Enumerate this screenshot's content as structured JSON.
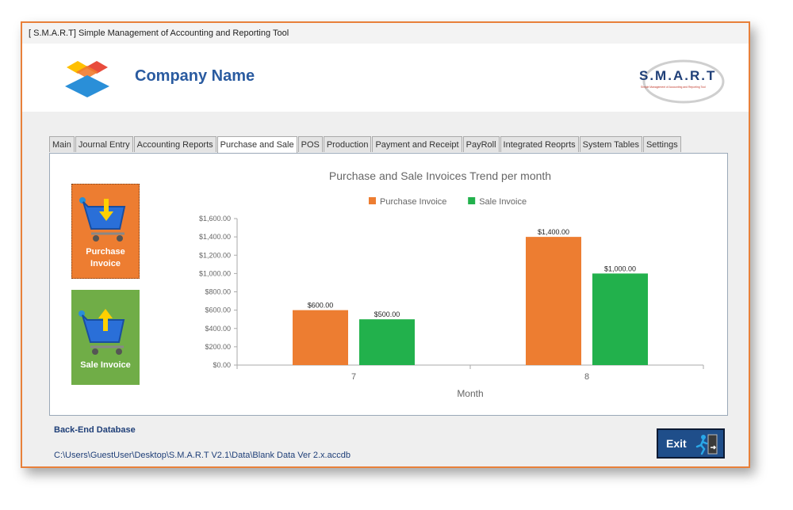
{
  "window": {
    "title": "[ S.M.A.R.T] Simple Management of Accounting and Reporting Tool"
  },
  "header": {
    "company_name": "Company Name",
    "brand": "S.M.A.R.T",
    "brand_tagline": "Simple Management of Accounting and Reporting Tool"
  },
  "tabs": [
    {
      "label": "Main"
    },
    {
      "label": "Journal Entry"
    },
    {
      "label": "Accounting Reports"
    },
    {
      "label": "Purchase and Sale",
      "active": true
    },
    {
      "label": "POS"
    },
    {
      "label": "Production"
    },
    {
      "label": "Payment and Receipt"
    },
    {
      "label": "PayRoll"
    },
    {
      "label": "Integrated Reoprts"
    },
    {
      "label": "System Tables"
    },
    {
      "label": "Settings"
    }
  ],
  "tiles": {
    "purchase": {
      "line1": "Purchase",
      "line2": "Invoice",
      "icon": "cart-down-arrow-icon"
    },
    "sale": {
      "line1": "Sale Invoice",
      "icon": "cart-up-arrow-icon"
    }
  },
  "chart_data": {
    "type": "bar",
    "title": "Purchase and Sale Invoices Trend per month",
    "xlabel": "Month",
    "ylabel": "",
    "categories": [
      "7",
      "8"
    ],
    "series": [
      {
        "name": "Purchase Invoice",
        "values": [
          600,
          1400
        ],
        "labels": [
          "$600.00",
          "$1,400.00"
        ],
        "color": "#ed7d31"
      },
      {
        "name": "Sale Invoice",
        "values": [
          500,
          1000
        ],
        "labels": [
          "$500.00",
          "$1,000.00"
        ],
        "color": "#22b14c"
      }
    ],
    "ylim": [
      0,
      1600
    ],
    "yticks": [
      "$0.00",
      "$200.00",
      "$400.00",
      "$600.00",
      "$800.00",
      "$1,000.00",
      "$1,200.00",
      "$1,400.00",
      "$1,600.00"
    ],
    "legend_position": "top-center",
    "grid": false
  },
  "footer": {
    "db_label": "Back-End Database",
    "db_path": "C:\\Users\\GuestUser\\Desktop\\S.M.A.R.T V2.1\\Data\\Blank Data Ver 2.x.accdb"
  },
  "exit": {
    "label": "Exit",
    "icon": "running-man-exit-icon"
  }
}
